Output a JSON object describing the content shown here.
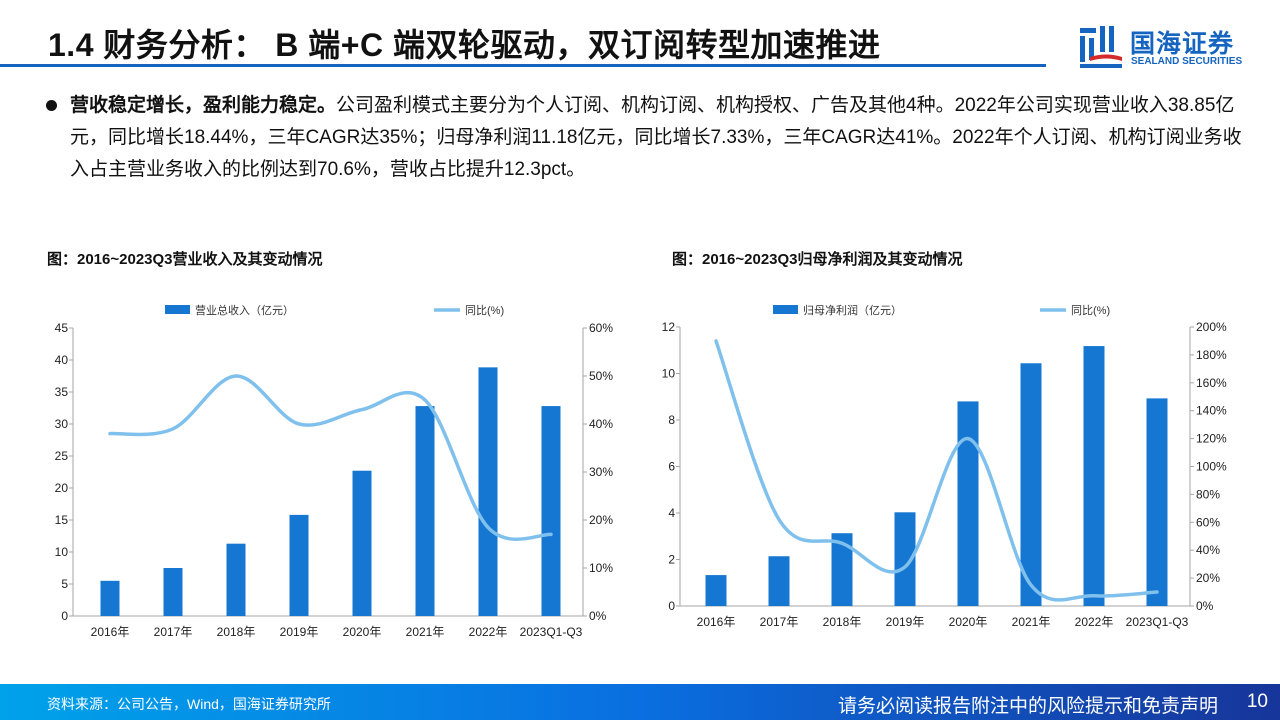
{
  "header": {
    "title": "1.4 财务分析： B 端+C 端双轮驱动，双订阅转型加速推进"
  },
  "logo": {
    "cn": "国海证券",
    "en": "SEALAND SECURITIES"
  },
  "bullet": {
    "lead": "营收稳定增长，盈利能力稳定。",
    "text": "公司盈利模式主要分为个人订阅、机构订阅、机构授权、广告及其他4种。2022年公司实现营业收入38.85亿元，同比增长18.44%，三年CAGR达35%；归母净利润11.18亿元，同比增长7.33%，三年CAGR达41%。2022年个人订阅、机构订阅业务收入占主营业务收入的比例达到70.6%，营收占比提升12.3pct。"
  },
  "colors": {
    "bar": "#1677d2",
    "line": "#7fc0ec",
    "brand": "#1565c0"
  },
  "chart_data": [
    {
      "type": "bar+line",
      "title": "图：2016~2023Q3营业收入及其变动情况",
      "categories": [
        "2016年",
        "2017年",
        "2018年",
        "2019年",
        "2020年",
        "2021年",
        "2022年",
        "2023Q1-Q3"
      ],
      "series": [
        {
          "name": "营业总收入（亿元）",
          "type": "bar",
          "axis": "left",
          "values": [
            5.5,
            7.5,
            11.3,
            15.8,
            22.7,
            32.8,
            38.85,
            32.8
          ]
        },
        {
          "name": "同比(%)",
          "type": "line",
          "axis": "right",
          "values": [
            38,
            39,
            50,
            40,
            43,
            45,
            18.44,
            17
          ]
        }
      ],
      "left_axis": {
        "ylim": [
          0,
          45
        ],
        "ticks": [
          "0",
          "5",
          "10",
          "15",
          "20",
          "25",
          "30",
          "35",
          "40",
          "45"
        ]
      },
      "right_axis": {
        "ylim": [
          0,
          60
        ],
        "ticks": [
          "0%",
          "10%",
          "20%",
          "30%",
          "40%",
          "50%",
          "60%"
        ]
      },
      "legend": "top",
      "grid": false
    },
    {
      "type": "bar+line",
      "title": "图：2016~2023Q3归母净利润及其变动情况",
      "categories": [
        "2016年",
        "2017年",
        "2018年",
        "2019年",
        "2020年",
        "2021年",
        "2022年",
        "2023Q1-Q3"
      ],
      "series": [
        {
          "name": "归母净利润（亿元）",
          "type": "bar",
          "axis": "left",
          "values": [
            1.33,
            2.14,
            3.13,
            4.03,
            8.8,
            10.44,
            11.18,
            8.93
          ]
        },
        {
          "name": "同比(%)",
          "type": "line",
          "axis": "right",
          "values": [
            190,
            62,
            45,
            28,
            120,
            15,
            7.33,
            10
          ]
        }
      ],
      "left_axis": {
        "ylim": [
          0,
          12
        ],
        "ticks": [
          "0",
          "2",
          "4",
          "6",
          "8",
          "10",
          "12"
        ]
      },
      "right_axis": {
        "ylim": [
          0,
          200
        ],
        "ticks": [
          "0%",
          "20%",
          "40%",
          "60%",
          "80%",
          "100%",
          "120%",
          "140%",
          "160%",
          "180%",
          "200%"
        ]
      },
      "legend": "top",
      "grid": false
    }
  ],
  "footer": {
    "source": "资料来源：公司公告，Wind，国海证券研究所",
    "disclaimer": "请务必阅读报告附注中的风险提示和免责声明",
    "page": "10"
  }
}
